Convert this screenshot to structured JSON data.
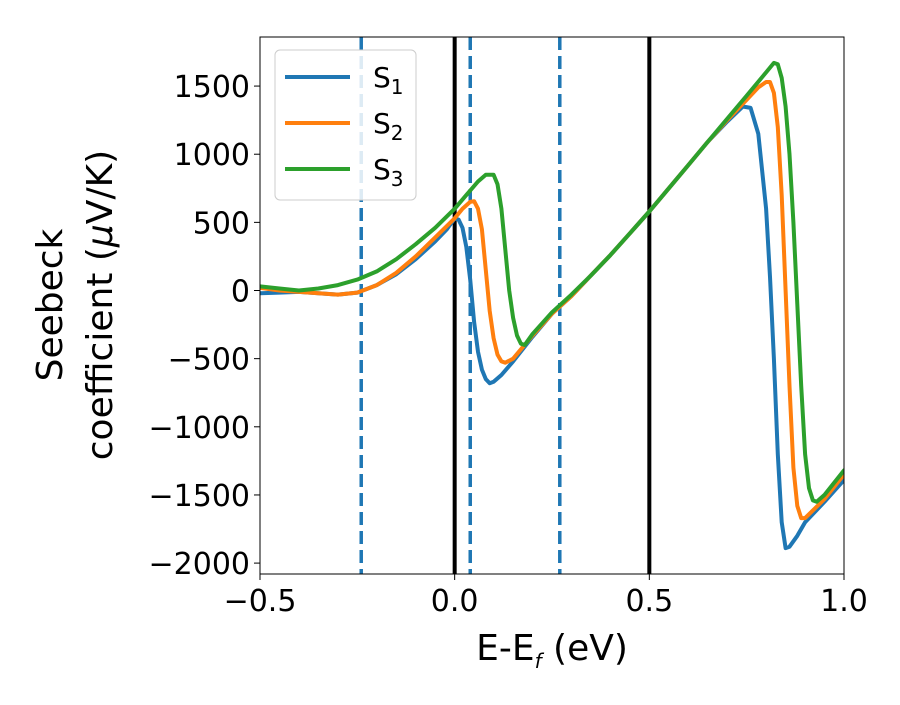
{
  "chart_data": {
    "type": "line",
    "xlabel": "E-E",
    "xlabel_sub": "f",
    "xlabel_unit": " (eV)",
    "ylabel_line1": "Seebeck",
    "ylabel_line2_prefix": "coefficient  (",
    "ylabel_mu": "μ",
    "ylabel_line2_suffix": "V/K)",
    "xlim": [
      -0.5,
      1.0
    ],
    "ylim": [
      -2080,
      1860
    ],
    "x_ticks": [
      -0.5,
      0.0,
      0.5,
      1.0
    ],
    "x_tick_labels": [
      "−0.5",
      "0.0",
      "0.5",
      "1.0"
    ],
    "y_ticks": [
      -2000,
      -1500,
      -1000,
      -500,
      0,
      500,
      1000,
      1500
    ],
    "y_tick_labels": [
      "−2000",
      "−1500",
      "−1000",
      "−500",
      "0",
      "500",
      "1000",
      "1500"
    ],
    "grid": false,
    "legend_position": "top-left",
    "vlines": [
      {
        "x": 0.0,
        "style": "solid",
        "color": "#000000"
      },
      {
        "x": 0.5,
        "style": "solid",
        "color": "#000000"
      },
      {
        "x": -0.24,
        "style": "dashed",
        "color": "#1f77b4"
      },
      {
        "x": 0.04,
        "style": "dashed",
        "color": "#1f77b4"
      },
      {
        "x": 0.27,
        "style": "dashed",
        "color": "#1f77b4"
      }
    ],
    "series": [
      {
        "name": "S",
        "name_sub": "1",
        "color": "#1f77b4",
        "points": [
          [
            -0.5,
            -20
          ],
          [
            -0.45,
            -15
          ],
          [
            -0.4,
            -10
          ],
          [
            -0.35,
            -20
          ],
          [
            -0.3,
            -30
          ],
          [
            -0.25,
            -15
          ],
          [
            -0.2,
            40
          ],
          [
            -0.15,
            120
          ],
          [
            -0.1,
            230
          ],
          [
            -0.05,
            360
          ],
          [
            -0.02,
            450
          ],
          [
            0.0,
            530
          ],
          [
            0.01,
            520
          ],
          [
            0.02,
            460
          ],
          [
            0.03,
            320
          ],
          [
            0.04,
            80
          ],
          [
            0.05,
            -230
          ],
          [
            0.06,
            -450
          ],
          [
            0.07,
            -580
          ],
          [
            0.08,
            -650
          ],
          [
            0.09,
            -680
          ],
          [
            0.1,
            -670
          ],
          [
            0.12,
            -620
          ],
          [
            0.15,
            -520
          ],
          [
            0.2,
            -340
          ],
          [
            0.25,
            -170
          ],
          [
            0.3,
            -40
          ],
          [
            0.35,
            110
          ],
          [
            0.4,
            260
          ],
          [
            0.45,
            420
          ],
          [
            0.5,
            580
          ],
          [
            0.55,
            750
          ],
          [
            0.6,
            920
          ],
          [
            0.65,
            1090
          ],
          [
            0.7,
            1240
          ],
          [
            0.74,
            1350
          ],
          [
            0.76,
            1340
          ],
          [
            0.78,
            1150
          ],
          [
            0.8,
            600
          ],
          [
            0.81,
            100
          ],
          [
            0.82,
            -500
          ],
          [
            0.83,
            -1200
          ],
          [
            0.84,
            -1700
          ],
          [
            0.85,
            -1890
          ],
          [
            0.86,
            -1880
          ],
          [
            0.88,
            -1800
          ],
          [
            0.9,
            -1700
          ],
          [
            0.95,
            -1550
          ],
          [
            1.0,
            -1390
          ]
        ]
      },
      {
        "name": "S",
        "name_sub": "2",
        "color": "#ff7f0e",
        "points": [
          [
            -0.5,
            20
          ],
          [
            -0.45,
            0
          ],
          [
            -0.4,
            -10
          ],
          [
            -0.35,
            -20
          ],
          [
            -0.3,
            -30
          ],
          [
            -0.25,
            -15
          ],
          [
            -0.2,
            40
          ],
          [
            -0.15,
            130
          ],
          [
            -0.1,
            250
          ],
          [
            -0.05,
            390
          ],
          [
            0.0,
            530
          ],
          [
            0.02,
            600
          ],
          [
            0.04,
            650
          ],
          [
            0.05,
            655
          ],
          [
            0.06,
            600
          ],
          [
            0.07,
            450
          ],
          [
            0.08,
            150
          ],
          [
            0.09,
            -150
          ],
          [
            0.1,
            -350
          ],
          [
            0.11,
            -470
          ],
          [
            0.12,
            -520
          ],
          [
            0.13,
            -530
          ],
          [
            0.15,
            -500
          ],
          [
            0.2,
            -330
          ],
          [
            0.25,
            -170
          ],
          [
            0.3,
            -40
          ],
          [
            0.35,
            110
          ],
          [
            0.4,
            260
          ],
          [
            0.45,
            420
          ],
          [
            0.5,
            580
          ],
          [
            0.55,
            750
          ],
          [
            0.6,
            920
          ],
          [
            0.65,
            1090
          ],
          [
            0.7,
            1250
          ],
          [
            0.75,
            1400
          ],
          [
            0.78,
            1490
          ],
          [
            0.8,
            1530
          ],
          [
            0.81,
            1530
          ],
          [
            0.82,
            1450
          ],
          [
            0.83,
            1200
          ],
          [
            0.84,
            700
          ],
          [
            0.85,
            0
          ],
          [
            0.86,
            -700
          ],
          [
            0.87,
            -1300
          ],
          [
            0.88,
            -1580
          ],
          [
            0.89,
            -1670
          ],
          [
            0.9,
            -1670
          ],
          [
            0.95,
            -1530
          ],
          [
            1.0,
            -1350
          ]
        ]
      },
      {
        "name": "S",
        "name_sub": "3",
        "color": "#2ca02c",
        "points": [
          [
            -0.5,
            30
          ],
          [
            -0.45,
            15
          ],
          [
            -0.4,
            0
          ],
          [
            -0.35,
            15
          ],
          [
            -0.3,
            40
          ],
          [
            -0.25,
            80
          ],
          [
            -0.2,
            140
          ],
          [
            -0.15,
            230
          ],
          [
            -0.1,
            340
          ],
          [
            -0.05,
            460
          ],
          [
            0.0,
            600
          ],
          [
            0.03,
            700
          ],
          [
            0.06,
            800
          ],
          [
            0.08,
            850
          ],
          [
            0.1,
            850
          ],
          [
            0.11,
            780
          ],
          [
            0.12,
            600
          ],
          [
            0.13,
            300
          ],
          [
            0.14,
            0
          ],
          [
            0.15,
            -200
          ],
          [
            0.16,
            -330
          ],
          [
            0.17,
            -390
          ],
          [
            0.18,
            -400
          ],
          [
            0.2,
            -320
          ],
          [
            0.25,
            -160
          ],
          [
            0.3,
            -30
          ],
          [
            0.35,
            110
          ],
          [
            0.4,
            260
          ],
          [
            0.45,
            420
          ],
          [
            0.5,
            580
          ],
          [
            0.55,
            750
          ],
          [
            0.6,
            920
          ],
          [
            0.65,
            1090
          ],
          [
            0.7,
            1260
          ],
          [
            0.75,
            1430
          ],
          [
            0.8,
            1600
          ],
          [
            0.82,
            1670
          ],
          [
            0.83,
            1660
          ],
          [
            0.84,
            1560
          ],
          [
            0.85,
            1350
          ],
          [
            0.86,
            1000
          ],
          [
            0.87,
            500
          ],
          [
            0.88,
            -100
          ],
          [
            0.89,
            -700
          ],
          [
            0.9,
            -1200
          ],
          [
            0.91,
            -1450
          ],
          [
            0.92,
            -1540
          ],
          [
            0.93,
            -1550
          ],
          [
            0.95,
            -1500
          ],
          [
            1.0,
            -1320
          ]
        ]
      }
    ]
  }
}
